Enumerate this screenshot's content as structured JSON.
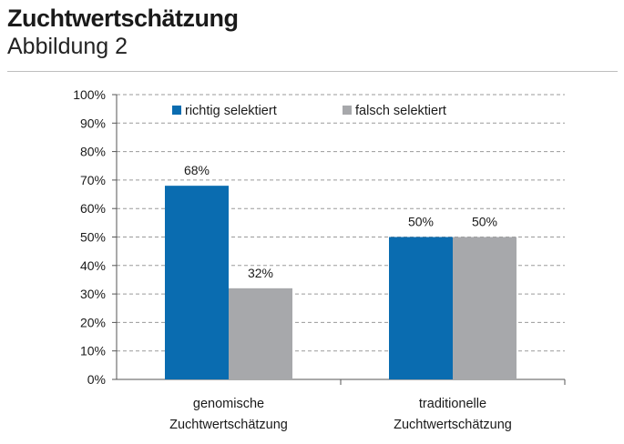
{
  "header": {
    "title": "Zuchtwertschätzung",
    "subtitle": "Abbildung 2"
  },
  "chart_data": {
    "type": "bar",
    "categories": [
      [
        "genomische",
        "Zuchtwertschätzung"
      ],
      [
        "traditionelle",
        "Zuchtwertschätzung"
      ]
    ],
    "series": [
      {
        "name": "richtig selektiert",
        "values": [
          68,
          50
        ],
        "labels": [
          "68%",
          "50%"
        ],
        "color": "#0a6cb0"
      },
      {
        "name": "falsch selektiert",
        "values": [
          32,
          50
        ],
        "labels": [
          "32%",
          "50%"
        ],
        "color": "#a7a8ab"
      }
    ],
    "ylim": [
      0,
      100
    ],
    "yticks": [
      "0%",
      "10%",
      "20%",
      "30%",
      "40%",
      "50%",
      "60%",
      "70%",
      "80%",
      "90%",
      "100%"
    ],
    "grid": true,
    "grid_style": "dashed",
    "legend_position": "top-left inside"
  }
}
